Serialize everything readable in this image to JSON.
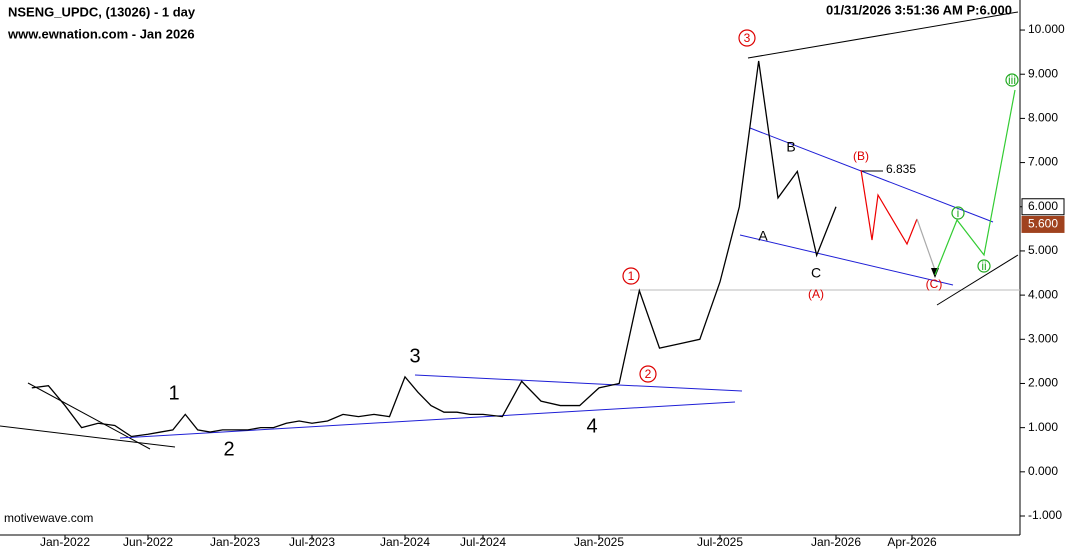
{
  "header": {
    "symbol": "NSENG_UPDC, (13026) - 1 day",
    "site": "www.ewnation.com  - Jan 2026",
    "timestamp": "01/31/2026 3:51:36 AM  P:6.000",
    "watermark": "motivewave.com"
  },
  "annotations": {
    "waves": [
      "1",
      "2",
      "3",
      "4"
    ],
    "circled": [
      "1",
      "2",
      "3"
    ],
    "abc": [
      "A",
      "B",
      "C"
    ],
    "abc_major": [
      "(A)",
      "(B)",
      "(C)"
    ],
    "minor": [
      "i",
      "ii",
      "iii"
    ],
    "level": "6.835"
  },
  "chart_data": {
    "type": "line",
    "x": [
      "2021-11",
      "2021-12",
      "2022-01",
      "2022-02",
      "2022-03",
      "2022-04",
      "2022-05",
      "2022-06",
      "2022-07",
      "2022-08",
      "2022-09",
      "2022-10",
      "2022-11",
      "2022-12",
      "2023-01",
      "2023-02",
      "2023-03",
      "2023-04",
      "2023-05",
      "2023-06",
      "2023-07",
      "2023-08",
      "2023-09",
      "2023-10",
      "2023-11",
      "2023-12",
      "2024-01",
      "2024-02",
      "2024-03",
      "2024-04",
      "2024-05",
      "2024-06",
      "2024-07",
      "2024-08",
      "2024-09",
      "2024-10",
      "2024-11",
      "2024-12",
      "2025-01",
      "2025-02",
      "2025-03",
      "2025-04",
      "2025-05",
      "2025-06",
      "2025-07",
      "2025-08",
      "2025-09",
      "2025-10",
      "2025-11",
      "2025-12",
      "2026-01"
    ],
    "series": [
      {
        "color": "#000000",
        "values": [
          1.9,
          1.95,
          1.5,
          1.0,
          1.1,
          1.05,
          0.8,
          0.85,
          0.9,
          0.95,
          1.3,
          0.95,
          0.9,
          0.95,
          0.95,
          0.95,
          1.0,
          1.0,
          1.1,
          1.15,
          1.1,
          1.15,
          1.3,
          1.25,
          1.3,
          1.25,
          2.15,
          1.8,
          1.5,
          1.35,
          1.35,
          1.3,
          1.3,
          1.25,
          2.05,
          1.6,
          1.5,
          1.5,
          1.9,
          2.0,
          4.1,
          2.8,
          2.9,
          3.0,
          4.3,
          6.0,
          9.3,
          6.2,
          6.8,
          4.9,
          6.0
        ]
      }
    ],
    "xticks": [
      {
        "value": "2022-01",
        "label": "Jan-2022"
      },
      {
        "value": "2022-06",
        "label": "Jun-2022"
      },
      {
        "value": "2023-01",
        "label": "Jan-2023"
      },
      {
        "value": "2023-07",
        "label": "Jul-2023"
      },
      {
        "value": "2024-01",
        "label": "Jan-2024"
      },
      {
        "value": "2024-07",
        "label": "Jul-2024"
      },
      {
        "value": "2025-01",
        "label": "Jan-2025"
      },
      {
        "value": "2025-07",
        "label": "Jul-2025"
      },
      {
        "value": "2026-01",
        "label": "Jan-2026"
      },
      {
        "value": "2026-04",
        "label": "Apr-2026"
      }
    ],
    "ylim": [
      -1.43,
      10.68
    ],
    "yticks": [
      {
        "value": 10,
        "label": "10.000"
      },
      {
        "value": 9,
        "label": "9.000"
      },
      {
        "value": 8,
        "label": "8.000"
      },
      {
        "value": 7,
        "label": "7.000"
      },
      {
        "value": 6,
        "label": "6.000"
      },
      {
        "value": 5,
        "label": "5.000"
      },
      {
        "value": 4,
        "label": "4.000"
      },
      {
        "value": 3,
        "label": "3.000"
      },
      {
        "value": 2,
        "label": "2.000"
      },
      {
        "value": 1,
        "label": "1.000"
      },
      {
        "value": 0,
        "label": "0.000"
      },
      {
        "value": -1,
        "label": "-1.000"
      }
    ],
    "price_tags": [
      {
        "value": 6,
        "label": "6.000",
        "color": "#ffffff"
      },
      {
        "value": 5.6,
        "label": "5.600",
        "color": "#a0421e"
      }
    ]
  }
}
